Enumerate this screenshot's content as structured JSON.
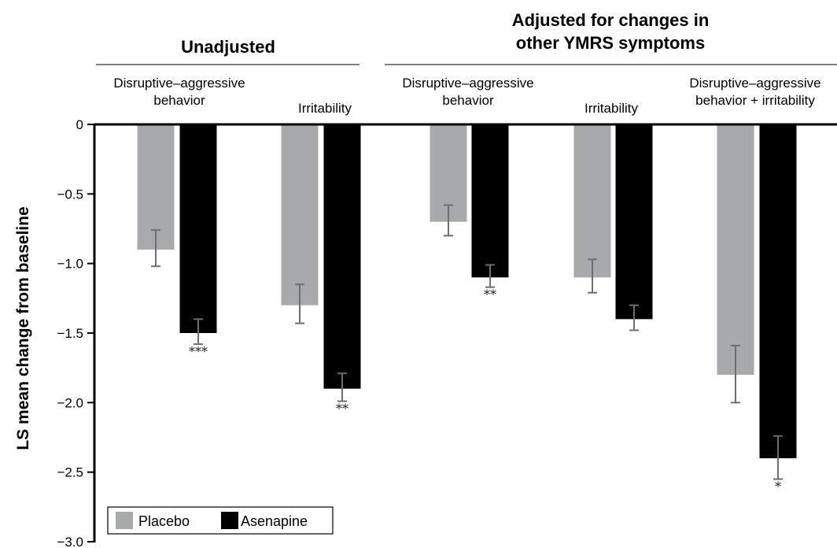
{
  "chart_data": {
    "type": "bar",
    "ylabel": "LS mean change from baseline",
    "ylim": [
      -3.0,
      0
    ],
    "yticks": [
      "0",
      "−0.5",
      "−1.0",
      "−1.5",
      "−2.0",
      "−2.5",
      "−3.0"
    ],
    "ytick_values": [
      0,
      -0.5,
      -1.0,
      -1.5,
      -2.0,
      -2.5,
      -3.0
    ],
    "grid": false,
    "legend_position": "bottom-left",
    "groups": [
      {
        "title_lines": [
          "Unadjusted"
        ],
        "category_indices": [
          0,
          1
        ]
      },
      {
        "title_lines": [
          "Adjusted for changes in",
          "other YMRS symptoms"
        ],
        "category_indices": [
          2,
          3,
          4
        ]
      }
    ],
    "categories": [
      {
        "label_lines": [
          "Disruptive–aggressive",
          "behavior"
        ]
      },
      {
        "label_lines": [
          "Irritability"
        ]
      },
      {
        "label_lines": [
          "Disruptive–aggressive",
          "behavior"
        ]
      },
      {
        "label_lines": [
          "Irritability"
        ]
      },
      {
        "label_lines": [
          "Disruptive–aggressive",
          "behavior + irritability"
        ]
      }
    ],
    "series": [
      {
        "name": "Placebo",
        "color": "#a7a9ac",
        "values": [
          -0.9,
          -1.3,
          -0.7,
          -1.1,
          -1.8
        ],
        "error_low": [
          -1.02,
          -1.43,
          -0.8,
          -1.21,
          -2.0
        ],
        "error_high": [
          -0.76,
          -1.15,
          -0.58,
          -0.97,
          -1.59
        ],
        "significance": [
          "",
          "",
          "",
          "",
          ""
        ]
      },
      {
        "name": "Asenapine",
        "color": "#000000",
        "values": [
          -1.5,
          -1.9,
          -1.1,
          -1.4,
          -2.4
        ],
        "error_low": [
          -1.58,
          -1.99,
          -1.17,
          -1.48,
          -2.55
        ],
        "error_high": [
          -1.4,
          -1.79,
          -1.01,
          -1.3,
          -2.24
        ],
        "significance": [
          "***",
          "**",
          "**",
          "",
          "*"
        ]
      }
    ]
  }
}
